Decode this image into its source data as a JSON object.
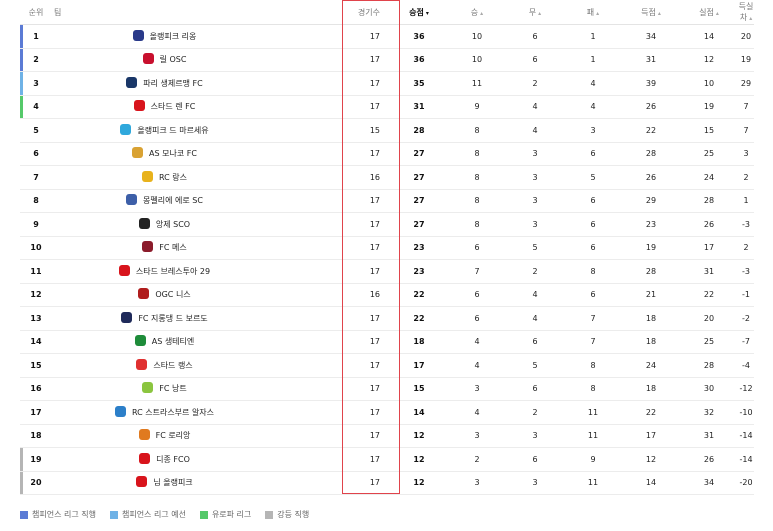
{
  "headers": {
    "rank": "순위",
    "team": "팀",
    "played": "경기수",
    "points": "승점",
    "wins": "승",
    "draws": "무",
    "losses": "패",
    "gf": "득점",
    "ga": "실점",
    "gd": "득실차",
    "sort_arrow": "▾",
    "arrow": "▴"
  },
  "zone_colors": {
    "ucl": "#5b7bd5",
    "ucl_q": "#6fb2e6",
    "uel": "#55c96a",
    "rel": "#b5b5b5"
  },
  "rows": [
    {
      "rank": "1",
      "team": "올랭피크 리옹",
      "played": "17",
      "points": "36",
      "wins": "10",
      "draws": "6",
      "losses": "1",
      "gf": "34",
      "ga": "14",
      "gd": "20",
      "zone": "ucl",
      "logo": "#2a3a8a"
    },
    {
      "rank": "2",
      "team": "릴 OSC",
      "played": "17",
      "points": "36",
      "wins": "10",
      "draws": "6",
      "losses": "1",
      "gf": "31",
      "ga": "12",
      "gd": "19",
      "zone": "ucl",
      "logo": "#c8102e"
    },
    {
      "rank": "3",
      "team": "파리 생제르맹 FC",
      "played": "17",
      "points": "35",
      "wins": "11",
      "draws": "2",
      "losses": "4",
      "gf": "39",
      "ga": "10",
      "gd": "29",
      "zone": "ucl_q",
      "logo": "#1a3768"
    },
    {
      "rank": "4",
      "team": "스타드 렌 FC",
      "played": "17",
      "points": "31",
      "wins": "9",
      "draws": "4",
      "losses": "4",
      "gf": "26",
      "ga": "19",
      "gd": "7",
      "zone": "uel",
      "logo": "#d8141c"
    },
    {
      "rank": "5",
      "team": "올랭피크 드 마르세유",
      "played": "15",
      "points": "28",
      "wins": "8",
      "draws": "4",
      "losses": "3",
      "gf": "22",
      "ga": "15",
      "gd": "7",
      "zone": "",
      "logo": "#2fa8dc"
    },
    {
      "rank": "6",
      "team": "AS 모나코 FC",
      "played": "17",
      "points": "27",
      "wins": "8",
      "draws": "3",
      "losses": "6",
      "gf": "28",
      "ga": "25",
      "gd": "3",
      "zone": "",
      "logo": "#d9a233"
    },
    {
      "rank": "7",
      "team": "RC 랑스",
      "played": "16",
      "points": "27",
      "wins": "8",
      "draws": "3",
      "losses": "5",
      "gf": "26",
      "ga": "24",
      "gd": "2",
      "zone": "",
      "logo": "#e8b21c"
    },
    {
      "rank": "8",
      "team": "몽펠리에 에로 SC",
      "played": "17",
      "points": "27",
      "wins": "8",
      "draws": "3",
      "losses": "6",
      "gf": "29",
      "ga": "28",
      "gd": "1",
      "zone": "",
      "logo": "#3d5fa8"
    },
    {
      "rank": "9",
      "team": "앙제 SCO",
      "played": "17",
      "points": "27",
      "wins": "8",
      "draws": "3",
      "losses": "6",
      "gf": "23",
      "ga": "26",
      "gd": "-3",
      "zone": "",
      "logo": "#222222"
    },
    {
      "rank": "10",
      "team": "FC 메스",
      "played": "17",
      "points": "23",
      "wins": "6",
      "draws": "5",
      "losses": "6",
      "gf": "19",
      "ga": "17",
      "gd": "2",
      "zone": "",
      "logo": "#8b1b2b"
    },
    {
      "rank": "11",
      "team": "스타드 브레스투아 29",
      "played": "17",
      "points": "23",
      "wins": "7",
      "draws": "2",
      "losses": "8",
      "gf": "28",
      "ga": "31",
      "gd": "-3",
      "zone": "",
      "logo": "#d8141c"
    },
    {
      "rank": "12",
      "team": "OGC 니스",
      "played": "16",
      "points": "22",
      "wins": "6",
      "draws": "4",
      "losses": "6",
      "gf": "21",
      "ga": "22",
      "gd": "-1",
      "zone": "",
      "logo": "#b01d1d"
    },
    {
      "rank": "13",
      "team": "FC 지롱댕 드 보르도",
      "played": "17",
      "points": "22",
      "wins": "6",
      "draws": "4",
      "losses": "7",
      "gf": "18",
      "ga": "20",
      "gd": "-2",
      "zone": "",
      "logo": "#1f2a5a"
    },
    {
      "rank": "14",
      "team": "AS 생테티엔",
      "played": "17",
      "points": "18",
      "wins": "4",
      "draws": "6",
      "losses": "7",
      "gf": "18",
      "ga": "25",
      "gd": "-7",
      "zone": "",
      "logo": "#1e8c3a"
    },
    {
      "rank": "15",
      "team": "스타드 랭스",
      "played": "17",
      "points": "17",
      "wins": "4",
      "draws": "5",
      "losses": "8",
      "gf": "24",
      "ga": "28",
      "gd": "-4",
      "zone": "",
      "logo": "#e03030"
    },
    {
      "rank": "16",
      "team": "FC 낭트",
      "played": "17",
      "points": "15",
      "wins": "3",
      "draws": "6",
      "losses": "8",
      "gf": "18",
      "ga": "30",
      "gd": "-12",
      "zone": "",
      "logo": "#8bc53f"
    },
    {
      "rank": "17",
      "team": "RC 스트라스부르 알자스",
      "played": "17",
      "points": "14",
      "wins": "4",
      "draws": "2",
      "losses": "11",
      "gf": "22",
      "ga": "32",
      "gd": "-10",
      "zone": "",
      "logo": "#2c7fc9"
    },
    {
      "rank": "18",
      "team": "FC 로리앙",
      "played": "17",
      "points": "12",
      "wins": "3",
      "draws": "3",
      "losses": "11",
      "gf": "17",
      "ga": "31",
      "gd": "-14",
      "zone": "",
      "logo": "#e07a1f"
    },
    {
      "rank": "19",
      "team": "디종 FCO",
      "played": "17",
      "points": "12",
      "wins": "2",
      "draws": "6",
      "losses": "9",
      "gf": "12",
      "ga": "26",
      "gd": "-14",
      "zone": "rel",
      "logo": "#d8141c"
    },
    {
      "rank": "20",
      "team": "님 올랭피크",
      "played": "17",
      "points": "12",
      "wins": "3",
      "draws": "3",
      "losses": "11",
      "gf": "14",
      "ga": "34",
      "gd": "-20",
      "zone": "rel",
      "logo": "#d8141c"
    }
  ],
  "legend": [
    {
      "label": "챔피언스 리그 직행",
      "color": "#5b7bd5"
    },
    {
      "label": "챔피언스 리그 예선",
      "color": "#6fb2e6"
    },
    {
      "label": "유로파 리그",
      "color": "#55c96a"
    },
    {
      "label": "강등 직행",
      "color": "#b5b5b5"
    }
  ]
}
